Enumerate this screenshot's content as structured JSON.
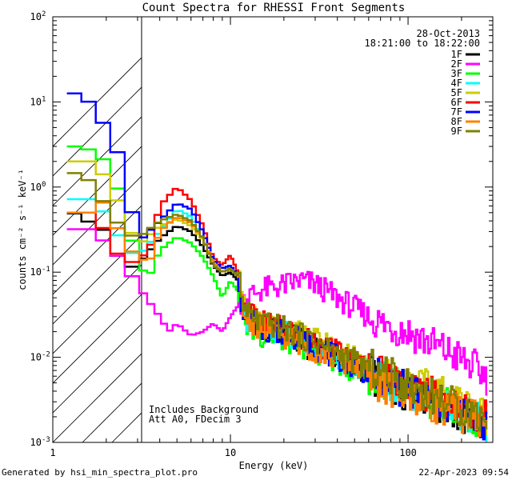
{
  "chart_data": {
    "type": "line",
    "title": "Count Spectra for RHESSI Front Segments",
    "xlabel": "Energy (keV)",
    "ylabel": "counts cm⁻² s⁻¹ keV⁻¹",
    "xscale": "log",
    "yscale": "log",
    "xlim": [
      1,
      300
    ],
    "ylim": [
      0.001,
      100
    ],
    "x_ticks": [
      {
        "value": 1,
        "label": "1"
      },
      {
        "value": 10,
        "label": "10"
      },
      {
        "value": 100,
        "label": "100"
      }
    ],
    "y_ticks": [
      {
        "value": 0.001,
        "base": "10",
        "exp": "-3"
      },
      {
        "value": 0.01,
        "base": "10",
        "exp": "-2"
      },
      {
        "value": 0.1,
        "base": "10",
        "exp": "-1"
      },
      {
        "value": 1,
        "base": "10",
        "exp": "0"
      },
      {
        "value": 10,
        "base": "10",
        "exp": "1"
      },
      {
        "value": 100,
        "base": "10",
        "exp": "2"
      }
    ],
    "excluded_region": {
      "x_from": 1,
      "x_to": 3,
      "style": "hatched"
    },
    "info": {
      "date": "28-Oct-2013",
      "time_range": "18:21:00 to 18:22:00"
    },
    "notes": [
      "Includes Background",
      "Att A0, FDecim 3"
    ],
    "legend_position": "top-right",
    "series": [
      {
        "name": "1F",
        "color": "#000000",
        "points": [
          [
            1.2,
            0.55
          ],
          [
            1.5,
            0.42
          ],
          [
            2.0,
            0.3
          ],
          [
            2.5,
            0.11
          ],
          [
            3,
            0.12
          ],
          [
            4,
            0.25
          ],
          [
            5,
            0.35
          ],
          [
            6,
            0.3
          ],
          [
            7,
            0.2
          ],
          [
            8,
            0.12
          ],
          [
            9,
            0.09
          ],
          [
            10,
            0.1
          ],
          [
            11,
            0.08
          ],
          [
            12,
            0.035
          ],
          [
            15,
            0.022
          ],
          [
            20,
            0.02
          ],
          [
            30,
            0.012
          ],
          [
            50,
            0.008
          ],
          [
            80,
            0.0045
          ],
          [
            120,
            0.0035
          ],
          [
            200,
            0.002
          ],
          [
            280,
            0.0015
          ]
        ]
      },
      {
        "name": "2F",
        "color": "#ff00ff",
        "points": [
          [
            1.2,
            0.32
          ],
          [
            1.6,
            0.32
          ],
          [
            2.0,
            0.22
          ],
          [
            2.5,
            0.13
          ],
          [
            3,
            0.07
          ],
          [
            4,
            0.03
          ],
          [
            4.5,
            0.02
          ],
          [
            5,
            0.025
          ],
          [
            6,
            0.018
          ],
          [
            7,
            0.02
          ],
          [
            8,
            0.025
          ],
          [
            9,
            0.02
          ],
          [
            10,
            0.03
          ],
          [
            11,
            0.04
          ],
          [
            12,
            0.05
          ],
          [
            15,
            0.062
          ],
          [
            20,
            0.07
          ],
          [
            25,
            0.08
          ],
          [
            30,
            0.072
          ],
          [
            40,
            0.05
          ],
          [
            50,
            0.038
          ],
          [
            70,
            0.025
          ],
          [
            100,
            0.02
          ],
          [
            150,
            0.013
          ],
          [
            200,
            0.0095
          ],
          [
            280,
            0.006
          ]
        ]
      },
      {
        "name": "3F",
        "color": "#00ff00",
        "points": [
          [
            1.2,
            3.0
          ],
          [
            1.5,
            3.0
          ],
          [
            2.0,
            2.0
          ],
          [
            2.5,
            0.65
          ],
          [
            3,
            0.12
          ],
          [
            3.5,
            0.09
          ],
          [
            4,
            0.18
          ],
          [
            5,
            0.26
          ],
          [
            6,
            0.22
          ],
          [
            7,
            0.15
          ],
          [
            8,
            0.09
          ],
          [
            9,
            0.05
          ],
          [
            10,
            0.08
          ],
          [
            11,
            0.06
          ],
          [
            12,
            0.025
          ],
          [
            15,
            0.018
          ],
          [
            20,
            0.016
          ],
          [
            30,
            0.012
          ],
          [
            50,
            0.007
          ],
          [
            80,
            0.005
          ],
          [
            120,
            0.0035
          ],
          [
            200,
            0.0022
          ],
          [
            280,
            0.0018
          ]
        ]
      },
      {
        "name": "4F",
        "color": "#00ffff",
        "points": [
          [
            1.2,
            0.72
          ],
          [
            1.6,
            0.72
          ],
          [
            2.0,
            0.48
          ],
          [
            2.5,
            0.2
          ],
          [
            3,
            0.15
          ],
          [
            4,
            0.3
          ],
          [
            5,
            0.55
          ],
          [
            6,
            0.45
          ],
          [
            7,
            0.25
          ],
          [
            8,
            0.13
          ],
          [
            9,
            0.1
          ],
          [
            10,
            0.11
          ],
          [
            11,
            0.09
          ],
          [
            12,
            0.03
          ],
          [
            15,
            0.022
          ],
          [
            20,
            0.02
          ],
          [
            30,
            0.013
          ],
          [
            50,
            0.008
          ],
          [
            80,
            0.005
          ],
          [
            120,
            0.0035
          ],
          [
            200,
            0.0022
          ],
          [
            280,
            0.0016
          ]
        ]
      },
      {
        "name": "5F",
        "color": "#cccc00",
        "points": [
          [
            1.2,
            2.0
          ],
          [
            1.6,
            2.0
          ],
          [
            2.0,
            1.3
          ],
          [
            2.5,
            0.5
          ],
          [
            3,
            0.2
          ],
          [
            4,
            0.35
          ],
          [
            5,
            0.42
          ],
          [
            6,
            0.35
          ],
          [
            7,
            0.24
          ],
          [
            8,
            0.14
          ],
          [
            9,
            0.11
          ],
          [
            10,
            0.12
          ],
          [
            11,
            0.09
          ],
          [
            12,
            0.035
          ],
          [
            15,
            0.025
          ],
          [
            20,
            0.022
          ],
          [
            30,
            0.016
          ],
          [
            50,
            0.01
          ],
          [
            80,
            0.006
          ],
          [
            120,
            0.0045
          ],
          [
            200,
            0.003
          ],
          [
            280,
            0.002
          ]
        ]
      },
      {
        "name": "6F",
        "color": "#ff0000",
        "points": [
          [
            1.2,
            0.5
          ],
          [
            1.6,
            0.5
          ],
          [
            2.0,
            0.3
          ],
          [
            2.5,
            0.12
          ],
          [
            3,
            0.14
          ],
          [
            3.5,
            0.18
          ],
          [
            4,
            0.6
          ],
          [
            5,
            1.0
          ],
          [
            6,
            0.7
          ],
          [
            7,
            0.35
          ],
          [
            8,
            0.15
          ],
          [
            9,
            0.12
          ],
          [
            10,
            0.16
          ],
          [
            11,
            0.1
          ],
          [
            12,
            0.035
          ],
          [
            15,
            0.025
          ],
          [
            20,
            0.022
          ],
          [
            30,
            0.015
          ],
          [
            50,
            0.009
          ],
          [
            80,
            0.006
          ],
          [
            120,
            0.004
          ],
          [
            200,
            0.0025
          ],
          [
            280,
            0.002
          ]
        ]
      },
      {
        "name": "7F",
        "color": "#0000ff",
        "points": [
          [
            1.2,
            13.0
          ],
          [
            1.5,
            12.0
          ],
          [
            2.0,
            5.0
          ],
          [
            2.5,
            1.8
          ],
          [
            3,
            0.22
          ],
          [
            4,
            0.4
          ],
          [
            5,
            0.65
          ],
          [
            6,
            0.55
          ],
          [
            7,
            0.3
          ],
          [
            8,
            0.14
          ],
          [
            9,
            0.11
          ],
          [
            10,
            0.12
          ],
          [
            11,
            0.09
          ],
          [
            12,
            0.03
          ],
          [
            15,
            0.022
          ],
          [
            20,
            0.02
          ],
          [
            30,
            0.013
          ],
          [
            50,
            0.008
          ],
          [
            80,
            0.005
          ],
          [
            120,
            0.0035
          ],
          [
            200,
            0.0022
          ],
          [
            280,
            0.0016
          ]
        ]
      },
      {
        "name": "8F",
        "color": "#ff8000",
        "points": [
          [
            1.2,
            0.5
          ],
          [
            1.6,
            0.5
          ],
          [
            2.0,
            0.7
          ],
          [
            2.5,
            0.22
          ],
          [
            3,
            0.15
          ],
          [
            3.5,
            0.13
          ],
          [
            4,
            0.3
          ],
          [
            5,
            0.45
          ],
          [
            6,
            0.38
          ],
          [
            7,
            0.25
          ],
          [
            8,
            0.13
          ],
          [
            9,
            0.1
          ],
          [
            10,
            0.11
          ],
          [
            11,
            0.09
          ],
          [
            12,
            0.03
          ],
          [
            15,
            0.022
          ],
          [
            20,
            0.018
          ],
          [
            30,
            0.012
          ],
          [
            50,
            0.008
          ],
          [
            80,
            0.004
          ],
          [
            120,
            0.0032
          ],
          [
            200,
            0.0022
          ],
          [
            280,
            0.0018
          ]
        ]
      },
      {
        "name": "9F",
        "color": "#808000",
        "points": [
          [
            1.2,
            1.6
          ],
          [
            1.6,
            1.2
          ],
          [
            2.0,
            0.6
          ],
          [
            2.5,
            0.3
          ],
          [
            3,
            0.25
          ],
          [
            4,
            0.4
          ],
          [
            5,
            0.48
          ],
          [
            6,
            0.4
          ],
          [
            7,
            0.25
          ],
          [
            8,
            0.12
          ],
          [
            9,
            0.1
          ],
          [
            10,
            0.11
          ],
          [
            11,
            0.09
          ],
          [
            12,
            0.035
          ],
          [
            15,
            0.025
          ],
          [
            20,
            0.022
          ],
          [
            30,
            0.015
          ],
          [
            50,
            0.009
          ],
          [
            80,
            0.006
          ],
          [
            120,
            0.004
          ],
          [
            200,
            0.0025
          ],
          [
            280,
            0.002
          ]
        ]
      }
    ]
  },
  "footer": {
    "left": "Generated by hsi_min_spectra_plot.pro",
    "right": "22-Apr-2023 09:54"
  }
}
